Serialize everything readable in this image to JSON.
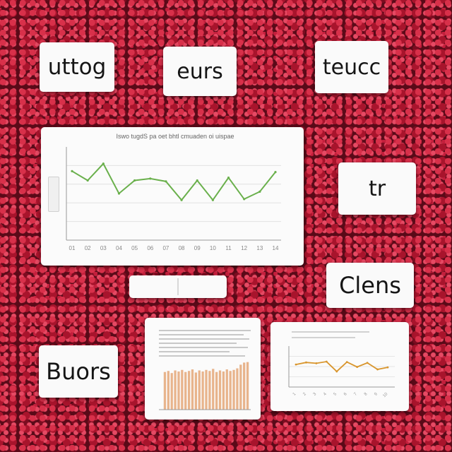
{
  "labels": {
    "top_left": "uttog",
    "top_center": "eurs",
    "top_right": "teucc",
    "mid_right": "tr",
    "lower_right": "Clens",
    "bottom_left": "Buors"
  },
  "main_chart_title": "Iswo tugdS pa oet bhtl cmuaden oi uispae",
  "colors": {
    "line_green": "#6ab04c",
    "line_orange": "#d9962e",
    "bar_peach": "#e8b48c",
    "background": "#5a0a18"
  },
  "chart_data": [
    {
      "type": "line",
      "title": "Iswo tugdS pa oet bhtl cmuaden oi uispae",
      "x": [
        "01",
        "02",
        "03",
        "04",
        "05",
        "06",
        "07",
        "08",
        "09",
        "10",
        "11",
        "12",
        "13",
        "14"
      ],
      "series": [
        {
          "values": [
            7.4,
            6.4,
            8.2,
            5.0,
            6.4,
            6.6,
            6.3,
            4.3,
            6.4,
            4.3,
            6.7,
            4.4,
            5.2,
            7.3
          ]
        }
      ],
      "ylim": [
        0,
        10
      ],
      "grid": true
    },
    {
      "type": "bar",
      "values": [
        7.2,
        7.4,
        7.0,
        7.5,
        7.3,
        7.6,
        7.2,
        7.4,
        7.7,
        7.1,
        7.5,
        7.3,
        7.6,
        7.4,
        7.8,
        7.2,
        7.5,
        7.3,
        7.7,
        7.4,
        7.6,
        7.9,
        8.6,
        9.0,
        9.1
      ],
      "ylim": [
        0,
        10
      ]
    },
    {
      "type": "line",
      "x": [
        "1",
        "2",
        "3",
        "4",
        "5",
        "6",
        "7",
        "8",
        "9",
        "10"
      ],
      "series": [
        {
          "values": [
            5.5,
            6.0,
            5.8,
            6.2,
            3.8,
            6.1,
            4.9,
            5.9,
            4.3,
            4.8
          ]
        }
      ],
      "ylim": [
        0,
        10
      ],
      "grid": true
    }
  ]
}
